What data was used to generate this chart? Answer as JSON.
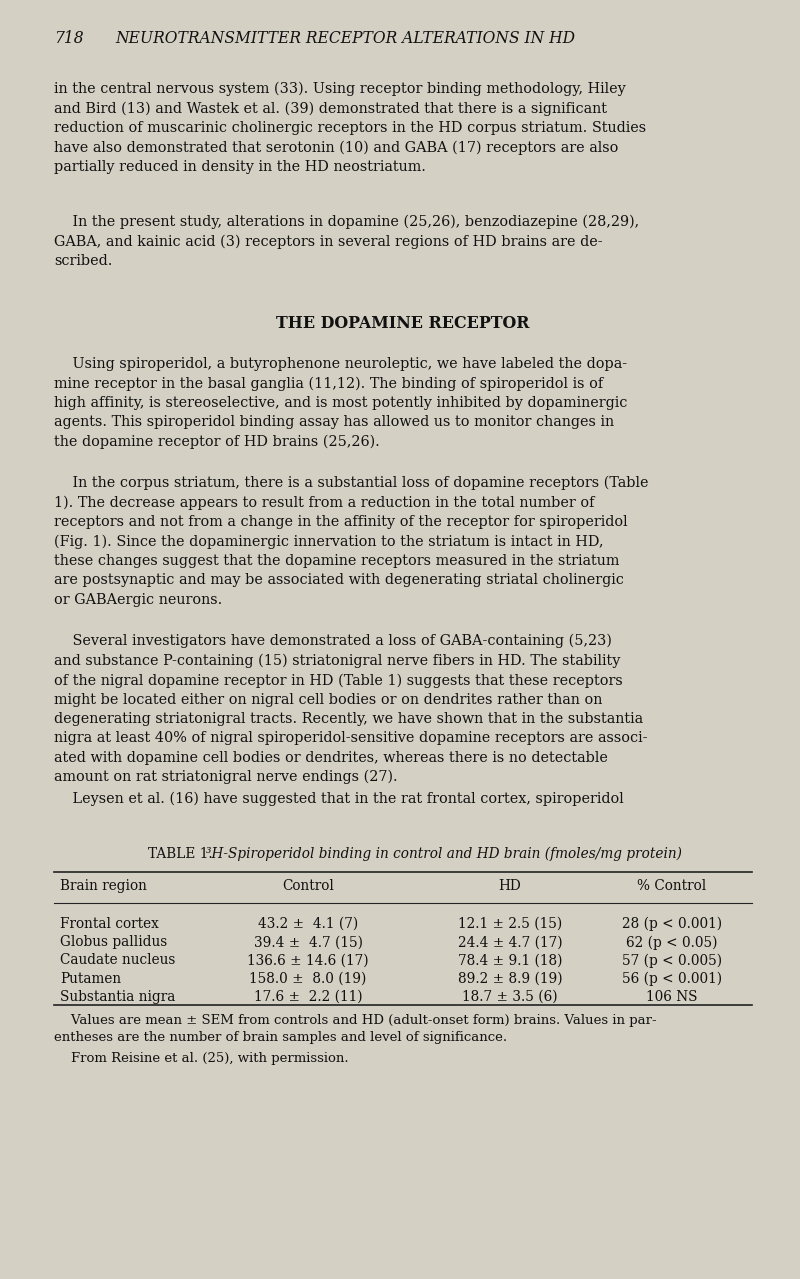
{
  "bg_color": "#d4d0c4",
  "text_color": "#111111",
  "page_width": 8.0,
  "page_height": 12.79,
  "dpi": 100,
  "header_number": "718",
  "header_title": "NEUROTRANSMITTER RECEPTOR ALTERATIONS IN HD",
  "paragraph1": "in the central nervous system (33). Using receptor binding methodology, Hiley\nand Bird (13) and Wastek et al. (39) demonstrated that there is a significant\nreduction of muscarinic cholinergic receptors in the HD corpus striatum. Studies\nhave also demonstrated that serotonin (10) and GABA (17) receptors are also\npartially reduced in density in the HD neostriatum.",
  "paragraph2": "    In the present study, alterations in dopamine (25,26), benzodiazepine (28,29),\nGABA, and kainic acid (3) receptors in several regions of HD brains are de-\nscribed.",
  "section_title": "THE DOPAMINE RECEPTOR",
  "paragraph3": "    Using spiroperidol, a butyrophenone neuroleptic, we have labeled the dopa-\nmine receptor in the basal ganglia (11,12). The binding of spiroperidol is of\nhigh affinity, is stereoselective, and is most potently inhibited by dopaminergic\nagents. This spiroperidol binding assay has allowed us to monitor changes in\nthe dopamine receptor of HD brains (25,26).",
  "paragraph4": "    In the corpus striatum, there is a substantial loss of dopamine receptors (Table\n1). The decrease appears to result from a reduction in the total number of\nreceptors and not from a change in the affinity of the receptor for spiroperidol\n(Fig. 1). Since the dopaminergic innervation to the striatum is intact in HD,\nthese changes suggest that the dopamine receptors measured in the striatum\nare postsynaptic and may be associated with degenerating striatal cholinergic\nor GABAergic neurons.",
  "paragraph5": "    Several investigators have demonstrated a loss of GABA-containing (5,23)\nand substance P-containing (15) striatonigral nerve fibers in HD. The stability\nof the nigral dopamine receptor in HD (Table 1) suggests that these receptors\nmight be located either on nigral cell bodies or on dendrites rather than on\ndegenerating striatonigral tracts. Recently, we have shown that in the substantia\nnigra at least 40% of nigral spiroperidol-sensitive dopamine receptors are associ-\nated with dopamine cell bodies or dendrites, whereas there is no detectable\namount on rat striatonigral nerve endings (27).",
  "paragraph6": "    Leysen et al. (16) have suggested that in the rat frontal cortex, spiroperidol",
  "table_caption_normal": "TABLE 1. ",
  "table_caption_italic": "³H-Spiroperidol binding in control and HD brain (fmoles/mg protein)",
  "table_headers": [
    "Brain region",
    "Control",
    "HD",
    "% Control"
  ],
  "table_rows": [
    [
      "Frontal cortex",
      "43.2 ±  4.1 (7)",
      "12.1 ± 2.5 (15)",
      "28 (p < 0.001)"
    ],
    [
      "Globus pallidus",
      "39.4 ±  4.7 (15)",
      "24.4 ± 4.7 (17)",
      "62 (p < 0.05)"
    ],
    [
      "Caudate nucleus",
      "136.6 ± 14.6 (17)",
      "78.4 ± 9.1 (18)",
      "57 (p < 0.005)"
    ],
    [
      "Putamen",
      "158.0 ±  8.0 (19)",
      "89.2 ± 8.9 (19)",
      "56 (p < 0.001)"
    ],
    [
      "Substantia nigra",
      "17.6 ±  2.2 (11)",
      "18.7 ± 3.5 (6)",
      "106 NS"
    ]
  ],
  "table_footnote1": "    Values are mean ± SEM from controls and HD (adult-onset form) brains. Values in par-\nentheses are the number of brain samples and level of significance.",
  "table_footnote2": "    From Reisine et al. (25), with permission."
}
